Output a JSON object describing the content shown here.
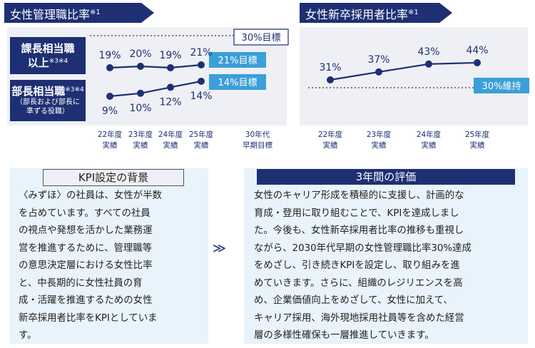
{
  "left_chart": {
    "title": "女性管理職比率",
    "title_sup": "※1",
    "rows": [
      {
        "label": "課長相当職",
        "label2": "以上",
        "sup": "※3※4",
        "sub1": "",
        "sub2": ""
      },
      {
        "label": "部長相当職",
        "label2": "",
        "sup": "※3※4",
        "sub1": "（部長および部長に",
        "sub2": "準ずる役職）"
      }
    ],
    "targets": {
      "target_2030": "30%目標",
      "kacho_target": "21%目標",
      "bucho_target": "14%目標"
    },
    "future_label_1": "30年代",
    "future_label_2": "早期目標"
  },
  "right_chart": {
    "title": "女性新卒採用者比率",
    "title_sup": "※1",
    "target": "30%維持"
  },
  "chart_data": [
    {
      "type": "line",
      "title": "女性管理職比率※1",
      "categories": [
        "22年度 実績",
        "23年度 実績",
        "24年度 実績",
        "25年度 実績"
      ],
      "series": [
        {
          "name": "課長相当職以上※3※4",
          "values": [
            19,
            20,
            19,
            21
          ],
          "unit": "%",
          "target": 21,
          "target_label": "21%目標"
        },
        {
          "name": "部長相当職※3※4",
          "values": [
            9,
            10,
            12,
            14
          ],
          "unit": "%",
          "target": 14,
          "target_label": "14%目標"
        }
      ],
      "extra_target": {
        "label": "30%目標",
        "period": "30年代 早期目標"
      },
      "xlabel": "",
      "ylabel": "",
      "grid": false
    },
    {
      "type": "line",
      "title": "女性新卒採用者比率※1",
      "categories": [
        "22年度 実績",
        "23年度 実績",
        "24年度 実績",
        "25年度 実績"
      ],
      "series": [
        {
          "values": [
            31,
            37,
            43,
            44
          ],
          "unit": "%"
        }
      ],
      "target_line": {
        "value": 30,
        "label": "30%維持"
      },
      "xlabel": "",
      "ylabel": "",
      "grid": false
    }
  ],
  "colors": {
    "navy": "#1e2f73",
    "accent_blue": "#3b9fd8",
    "panel_bg": "#eef0f5",
    "box_bg": "#e8f3fb"
  },
  "kpi_box": {
    "heading": "KPI設定の背景",
    "lines": [
      "〈みずほ〉の社員は、女性が半数",
      "を占めています。すべての社員",
      "の視点や発想を活かした業務運",
      "営を推進するために、管理職等",
      "の意思決定層における女性比率",
      "と、中長期的に女性社員の育",
      "成・活躍を推進するための女性",
      "新卒採用者比率をKPIとしていま",
      "す。"
    ]
  },
  "arrow": "≫",
  "eval_box": {
    "heading": "3年間の評価",
    "lines": [
      "女性のキャリア形成を積極的に支援し、計画的な",
      "育成・登用に取り組むことで、KPIを達成しまし",
      "た。今後も、女性新卒採用者比率の推移も重視し",
      "ながら、2030年代早期の女性管理職比率30%達成",
      "をめざし、引き続きKPIを設定し、取り組みを進",
      "めていきます。さらに、組織のレジリエンスを高",
      "め、企業価値向上をめざして、女性に加えて、",
      "キャリア採用、海外現地採用社員等を含めた経営",
      "層の多様性確保も一層推進していきます。"
    ]
  }
}
